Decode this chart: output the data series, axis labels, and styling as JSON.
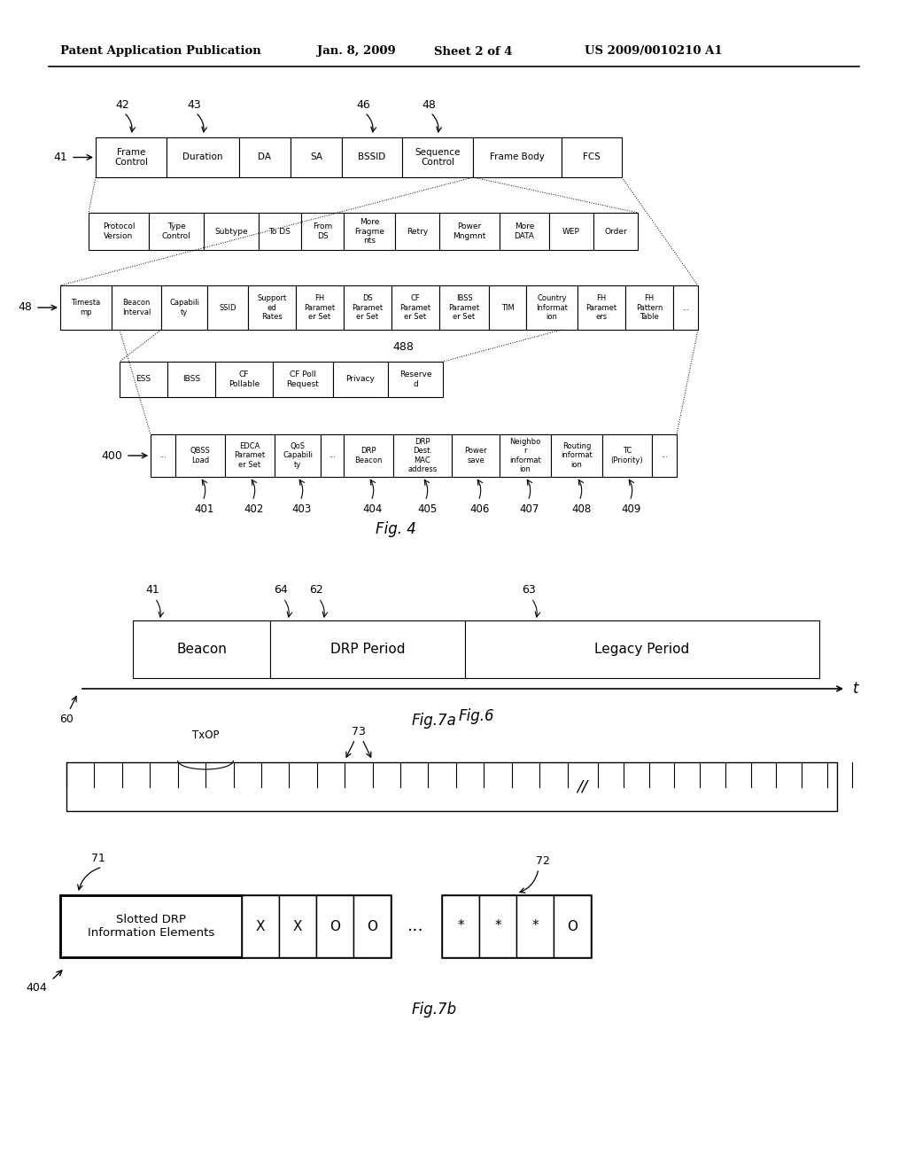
{
  "bg_color": "#ffffff",
  "header_text": "Patent Application Publication",
  "header_date": "Jan. 8, 2009",
  "header_sheet": "Sheet 2 of 4",
  "header_patent": "US 2009/0010210 A1",
  "fig4_label": "Fig. 4",
  "fig6_label": "Fig.6",
  "fig7a_label": "Fig.7a",
  "fig7b_label": "Fig.7b"
}
